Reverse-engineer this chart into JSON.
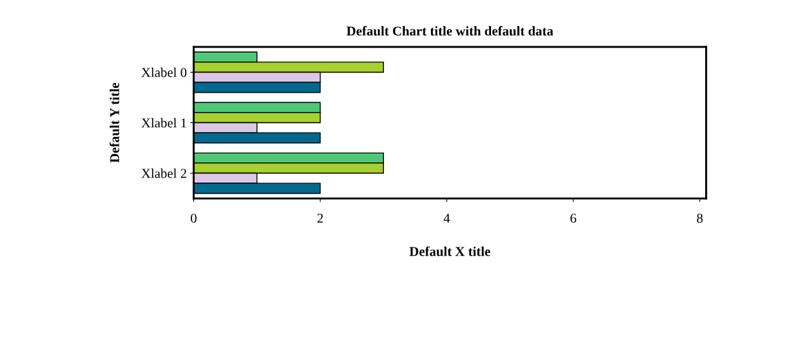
{
  "chart_data": {
    "type": "bar",
    "orientation": "horizontal",
    "title": "Default Chart title with default data",
    "xlabel": "Default X title",
    "ylabel": "Default Y title",
    "categories": [
      "Xlabel 0",
      "Xlabel 1",
      "Xlabel 2"
    ],
    "series": [
      {
        "color": "#50c878",
        "values": [
          1,
          2,
          3
        ]
      },
      {
        "color": "#a8d030",
        "values": [
          3,
          2,
          3
        ]
      },
      {
        "color": "#dcc8e6",
        "values": [
          2,
          1,
          1
        ]
      },
      {
        "color": "#006a8e",
        "values": [
          2,
          2,
          2
        ]
      }
    ],
    "xlim": [
      0,
      8.1
    ],
    "xticks": [
      0,
      2,
      4,
      6,
      8
    ],
    "grid": false,
    "legend": false
  }
}
